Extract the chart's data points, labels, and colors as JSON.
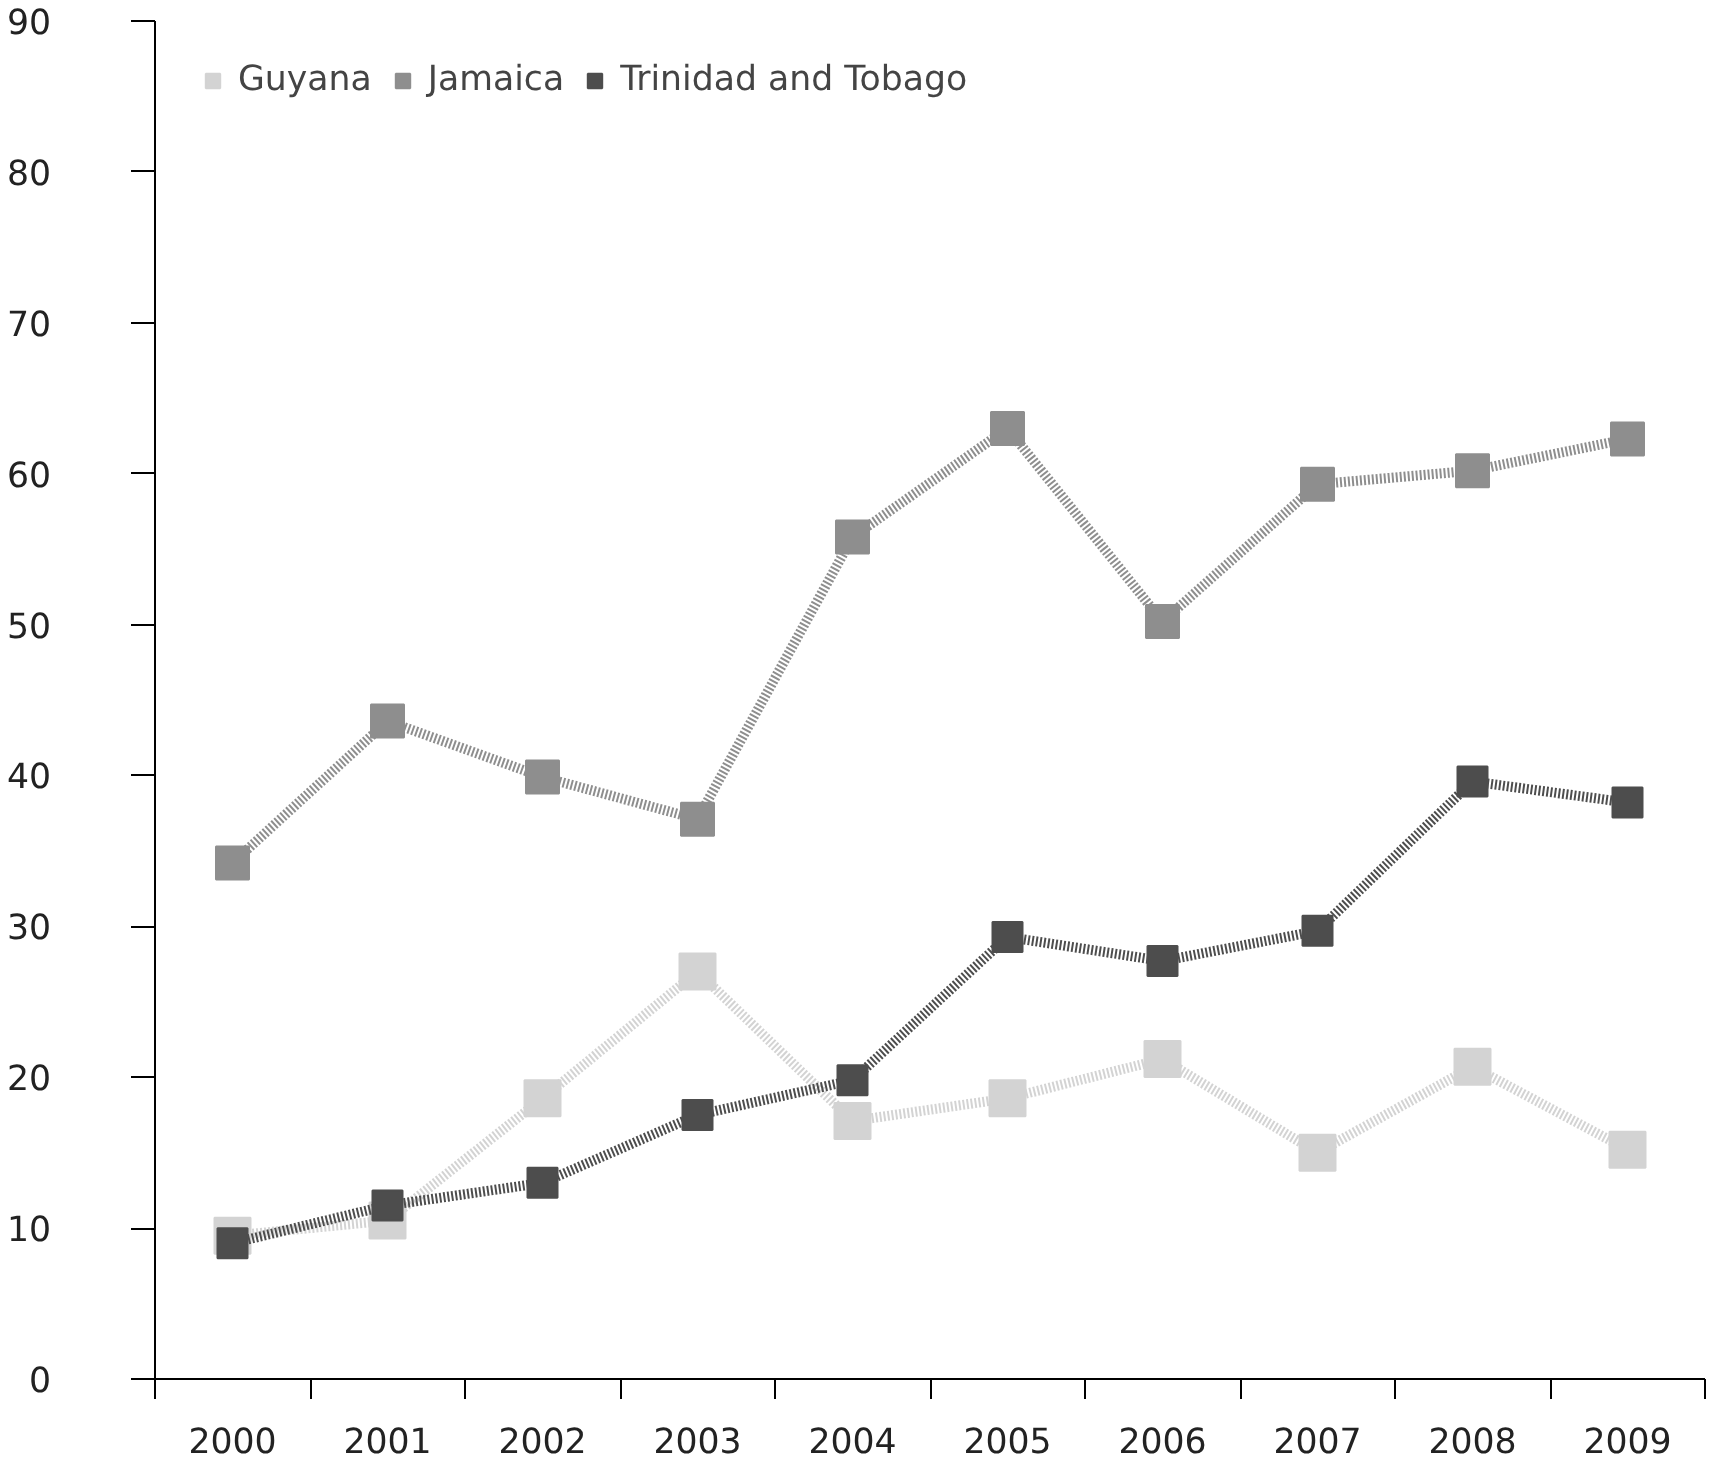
{
  "chart_data": {
    "type": "line",
    "categories": [
      "2000",
      "2001",
      "2002",
      "2003",
      "2004",
      "2005",
      "2006",
      "2007",
      "2008",
      "2009"
    ],
    "series": [
      {
        "name": "Guyana",
        "color": "#d3d3d3",
        "values": [
          9.5,
          10.5,
          18.6,
          27.0,
          17.1,
          18.6,
          21.2,
          15.0,
          20.7,
          15.2
        ]
      },
      {
        "name": "Jamaica",
        "color": "#8e8e8e",
        "values": [
          34.2,
          43.6,
          39.9,
          37.1,
          55.8,
          63.0,
          50.2,
          59.3,
          60.2,
          62.3
        ]
      },
      {
        "name": "Trinidad and Tobago",
        "color": "#4d4d4d",
        "values": [
          9.0,
          11.5,
          13.0,
          17.5,
          19.8,
          29.3,
          27.7,
          29.7,
          39.6,
          38.2
        ]
      }
    ],
    "ylim": [
      0,
      90
    ],
    "yticks": [
      0,
      10,
      20,
      30,
      40,
      50,
      60,
      70,
      80,
      90
    ],
    "grid": false,
    "legend": "top left",
    "marker": "square",
    "line_style": "dotted"
  }
}
